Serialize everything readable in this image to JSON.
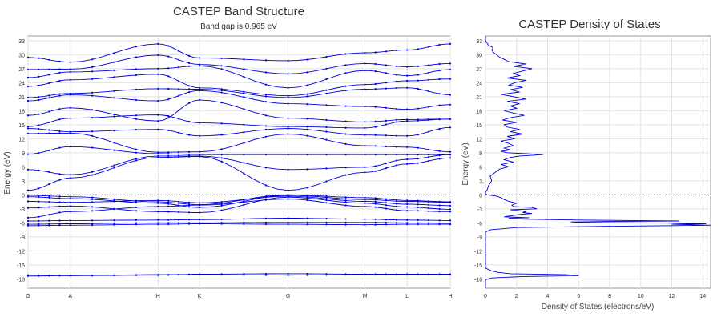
{
  "colors": {
    "band": "#0000dd",
    "grid": "#e2e2e2",
    "axis": "#7a7a7a",
    "zero": "#222222",
    "text": "#333333"
  },
  "chart_data": [
    {
      "type": "line",
      "title": "CASTEP Band Structure",
      "subtitle": "Band gap is 0.965 eV",
      "ylabel": "Energy (eV)",
      "xlabel": "",
      "ylim": [
        -20,
        34
      ],
      "yticks": [
        -18,
        -15,
        -12,
        -9,
        -6,
        -3,
        0,
        3,
        6,
        9,
        12,
        15,
        18,
        21,
        24,
        27,
        30,
        33
      ],
      "ytick_labels": [
        "-18",
        "-15",
        "-12",
        "-9",
        "-6",
        "-3",
        "0",
        "3",
        "6",
        "9",
        "12",
        "15",
        "18",
        "21",
        "24",
        "27",
        "30",
        "33"
      ],
      "kpoints": [
        {
          "label": "G",
          "x": 0.0
        },
        {
          "label": "A",
          "x": 0.1
        },
        {
          "label": "H",
          "x": 0.308
        },
        {
          "label": "K",
          "x": 0.406
        },
        {
          "label": "G",
          "x": 0.616
        },
        {
          "label": "M",
          "x": 0.798
        },
        {
          "label": "L",
          "x": 0.898
        },
        {
          "label": "H",
          "x": 1.0
        }
      ],
      "fermi_level": 0,
      "grid": true,
      "bands": [
        [
          -17.4,
          -17.3,
          -17.1,
          -17.1,
          -17.2,
          -17.1,
          -17.1,
          -17.1
        ],
        [
          -17.2,
          -17.3,
          -17.2,
          -17.0,
          -16.9,
          -17.0,
          -17.0,
          -17.0
        ],
        [
          -6.6,
          -6.5,
          -6.3,
          -6.2,
          -6.3,
          -6.4,
          -6.3,
          -6.3
        ],
        [
          -6.3,
          -6.2,
          -6.0,
          -6.0,
          -5.9,
          -5.9,
          -6.0,
          -6.1
        ],
        [
          -5.6,
          -5.5,
          -5.4,
          -5.3,
          -5.0,
          -5.2,
          -5.4,
          -5.5
        ],
        [
          -4.9,
          -3.6,
          -2.5,
          -2.2,
          -0.9,
          -2.5,
          -3.4,
          -3.6
        ],
        [
          -2.8,
          -2.4,
          -3.6,
          -3.8,
          -0.5,
          -1.8,
          -2.6,
          -3.1
        ],
        [
          -1.4,
          -1.6,
          -1.2,
          -1.7,
          -0.3,
          -1.4,
          -2.0,
          -2.3
        ],
        [
          -0.4,
          -0.8,
          -1.8,
          -2.7,
          -0.1,
          -1.0,
          -1.4,
          -1.6
        ],
        [
          -0.1,
          -0.4,
          -1.5,
          -2.1,
          0.0,
          -0.6,
          -1.2,
          -1.5
        ],
        [
          0.97,
          3.6,
          8.0,
          8.2,
          0.97,
          4.8,
          6.6,
          7.9
        ],
        [
          5.4,
          4.3,
          8.3,
          8.3,
          5.4,
          5.9,
          7.6,
          8.6
        ],
        [
          8.7,
          10.3,
          8.8,
          8.6,
          8.6,
          8.6,
          8.6,
          8.6
        ],
        [
          13.1,
          13.2,
          9.1,
          9.2,
          13.0,
          10.5,
          10.2,
          9.2
        ],
        [
          14.2,
          13.5,
          14.0,
          12.6,
          14.2,
          12.8,
          12.6,
          14.4
        ],
        [
          14.6,
          16.4,
          17.1,
          15.4,
          14.6,
          14.3,
          15.8,
          16.2
        ],
        [
          17.0,
          18.6,
          15.8,
          20.3,
          16.4,
          15.6,
          16.1,
          16.2
        ],
        [
          20.1,
          21.4,
          20.1,
          22.3,
          19.5,
          18.9,
          18.3,
          19.3
        ],
        [
          20.8,
          21.7,
          22.7,
          22.6,
          20.8,
          22.6,
          22.9,
          21.4
        ],
        [
          23.2,
          24.6,
          25.8,
          22.9,
          21.2,
          23.6,
          24.4,
          24.8
        ],
        [
          25.1,
          26.3,
          27.0,
          27.6,
          22.9,
          26.6,
          25.5,
          26.8
        ],
        [
          26.8,
          26.9,
          29.9,
          27.9,
          25.9,
          28.1,
          27.4,
          28.1
        ],
        [
          29.4,
          28.4,
          32.3,
          29.3,
          28.7,
          30.4,
          31.0,
          32.3
        ]
      ]
    },
    {
      "type": "line",
      "title": "CASTEP Density of States",
      "xlabel": "Density of States (electrons/eV)",
      "ylabel": "Energy (eV)",
      "xlim": [
        0,
        14.5
      ],
      "ylim": [
        -20,
        34
      ],
      "xticks": [
        0,
        2,
        4,
        6,
        8,
        10,
        12,
        14
      ],
      "xtick_labels": [
        "0",
        "2",
        "4",
        "6",
        "8",
        "10",
        "12",
        "14"
      ],
      "yticks": [
        -18,
        -15,
        -12,
        -9,
        -6,
        -3,
        0,
        3,
        6,
        9,
        12,
        15,
        18,
        21,
        24,
        27,
        30,
        33
      ],
      "ytick_labels": [
        "-18",
        "-15",
        "-12",
        "-9",
        "-6",
        "-3",
        "0",
        "3",
        "6",
        "9",
        "12",
        "15",
        "18",
        "21",
        "24",
        "27",
        "30",
        "33"
      ],
      "fermi_level": 0,
      "grid": true,
      "energy": [
        -20,
        -18.2,
        -17.8,
        -17.5,
        -17.3,
        -17.1,
        -16.9,
        -16.6,
        -16.3,
        -16.0,
        -15.7,
        -8.0,
        -7.5,
        -7.0,
        -6.7,
        -6.5,
        -6.3,
        -6.2,
        -6.1,
        -6.0,
        -5.9,
        -5.8,
        -5.7,
        -5.6,
        -5.4,
        -5.2,
        -5.0,
        -4.9,
        -4.7,
        -4.4,
        -4.2,
        -4.0,
        -3.8,
        -3.6,
        -3.4,
        -3.2,
        -3.0,
        -2.7,
        -2.5,
        -2.2,
        -1.8,
        -1.4,
        -1.0,
        -0.6,
        -0.2,
        0.0,
        0.3,
        0.6,
        1.0,
        2.0,
        3.0,
        4.0,
        4.5,
        5.0,
        5.5,
        6.0,
        6.5,
        7.0,
        7.5,
        8.0,
        8.3,
        8.6,
        8.8,
        9.0,
        9.3,
        9.6,
        10.0,
        10.5,
        11.0,
        11.5,
        12.0,
        12.5,
        13.0,
        13.5,
        14.0,
        14.5,
        15.0,
        15.5,
        16.0,
        16.5,
        17.0,
        17.5,
        18.0,
        18.5,
        19.0,
        19.5,
        20.0,
        20.5,
        21.0,
        21.5,
        22.0,
        22.5,
        23.0,
        23.5,
        24.0,
        24.5,
        25.0,
        25.5,
        26.0,
        26.5,
        27.0,
        27.5,
        28.0,
        28.5,
        29.0,
        29.5,
        30.0,
        30.5,
        31.0,
        31.5,
        32.0,
        32.5,
        33.0,
        34.0
      ],
      "dos": [
        0,
        0,
        0.4,
        2.5,
        6.0,
        5.2,
        1.6,
        0.8,
        0.4,
        0.2,
        0,
        0,
        0.3,
        2.0,
        9.0,
        14.5,
        12.0,
        14.2,
        13.0,
        10.0,
        6.0,
        5.5,
        8.0,
        12.5,
        6.0,
        2.4,
        1.5,
        2.8,
        1.2,
        1.8,
        2.2,
        3.0,
        2.4,
        2.6,
        2.2,
        1.6,
        3.3,
        3.0,
        1.8,
        1.7,
        2.0,
        1.5,
        1.2,
        1.0,
        0.6,
        0.1,
        0.0,
        0.0,
        0.1,
        0.2,
        0.4,
        0.3,
        0.5,
        0.7,
        0.9,
        1.5,
        1.0,
        1.8,
        1.2,
        1.6,
        2.2,
        3.7,
        2.6,
        1.4,
        1.0,
        1.6,
        1.2,
        1.8,
        1.5,
        1.0,
        1.9,
        1.4,
        2.4,
        1.6,
        2.2,
        1.4,
        1.2,
        2.0,
        1.1,
        1.6,
        2.5,
        1.8,
        1.2,
        2.0,
        1.6,
        2.2,
        1.4,
        2.6,
        1.8,
        1.0,
        2.2,
        1.6,
        2.4,
        1.5,
        1.9,
        2.6,
        1.4,
        2.2,
        1.8,
        2.4,
        3.0,
        1.8,
        2.6,
        1.5,
        1.2,
        0.9,
        0.7,
        0.5,
        0.4,
        0.5,
        0.2,
        0.1,
        0.0,
        0.0
      ]
    }
  ]
}
